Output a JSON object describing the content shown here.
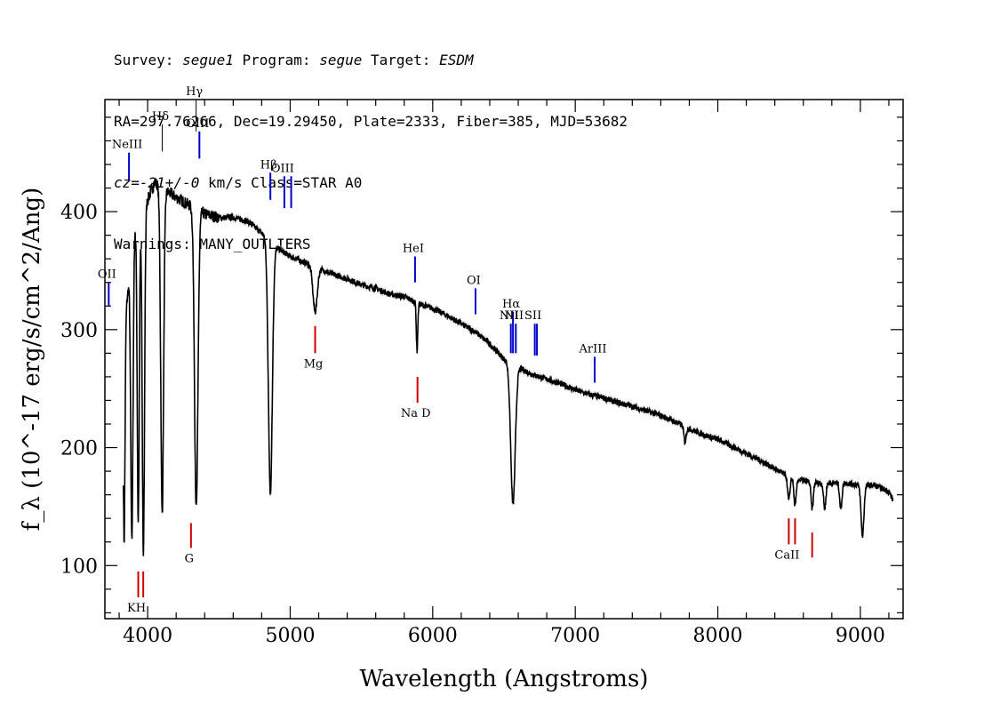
{
  "header": {
    "line1": {
      "survey_label": "Survey: ",
      "survey": "segue1",
      "program_label": " Program: ",
      "program": "segue",
      "target_label": " Target: ",
      "target": "ESDM"
    },
    "line2": "RA=297.76266, Dec=19.29450, Plate=2333, Fiber=385, MJD=53682",
    "line3": {
      "cz_value": "cz=-21+/-0",
      "rest": " km/s Class=STAR A0"
    },
    "line4": "Warnings: MANY_OUTLIERS"
  },
  "chart_data": {
    "type": "line",
    "xlabel": "Wavelength (Angstroms)",
    "ylabel": "f_λ (10^-17 erg/s/cm^2/Ang)",
    "xlim": [
      3700,
      9300
    ],
    "ylim": [
      55,
      495
    ],
    "xticks": [
      "4000",
      "5000",
      "6000",
      "7000",
      "8000",
      "9000"
    ],
    "yticks": [
      "100",
      "200",
      "300",
      "400"
    ],
    "colors": {
      "spectrum": "#000000",
      "error": "#b0b0b0",
      "emission": "#0000cc",
      "absorption": "#cc0000"
    },
    "continuum": [
      [
        3830,
        300
      ],
      [
        3860,
        330
      ],
      [
        3900,
        380
      ],
      [
        3950,
        400
      ],
      [
        4000,
        410
      ],
      [
        4050,
        425
      ],
      [
        4100,
        420
      ],
      [
        4200,
        412
      ],
      [
        4300,
        405
      ],
      [
        4400,
        398
      ],
      [
        4500,
        395
      ],
      [
        4600,
        395
      ],
      [
        4700,
        392
      ],
      [
        4800,
        382
      ],
      [
        4900,
        370
      ],
      [
        5000,
        362
      ],
      [
        5100,
        357
      ],
      [
        5200,
        352
      ],
      [
        5300,
        347
      ],
      [
        5400,
        343
      ],
      [
        5500,
        338
      ],
      [
        5600,
        335
      ],
      [
        5700,
        330
      ],
      [
        5800,
        328
      ],
      [
        5900,
        322
      ],
      [
        6000,
        318
      ],
      [
        6100,
        312
      ],
      [
        6200,
        305
      ],
      [
        6300,
        298
      ],
      [
        6400,
        288
      ],
      [
        6500,
        275
      ],
      [
        6600,
        268
      ],
      [
        6700,
        262
      ],
      [
        6800,
        258
      ],
      [
        6900,
        254
      ],
      [
        7000,
        249
      ],
      [
        7100,
        245
      ],
      [
        7200,
        242
      ],
      [
        7300,
        238
      ],
      [
        7400,
        235
      ],
      [
        7500,
        231
      ],
      [
        7600,
        227
      ],
      [
        7700,
        222
      ],
      [
        7800,
        216
      ],
      [
        7900,
        211
      ],
      [
        8000,
        207
      ],
      [
        8100,
        201
      ],
      [
        8200,
        195
      ],
      [
        8300,
        189
      ],
      [
        8400,
        182
      ],
      [
        8500,
        175
      ],
      [
        8600,
        172
      ],
      [
        8700,
        170
      ],
      [
        8800,
        170
      ],
      [
        8900,
        170
      ],
      [
        9000,
        168
      ],
      [
        9100,
        168
      ],
      [
        9200,
        163
      ],
      [
        9230,
        155
      ]
    ],
    "absorption_features": [
      [
        3835,
        120,
        6
      ],
      [
        3889,
        122,
        8
      ],
      [
        3934,
        135,
        7
      ],
      [
        3970,
        108,
        8
      ],
      [
        4102,
        145,
        10
      ],
      [
        4341,
        148,
        12
      ],
      [
        4861,
        162,
        14
      ],
      [
        5175,
        315,
        15
      ],
      [
        5890,
        282,
        5
      ],
      [
        6563,
        152,
        16
      ],
      [
        7770,
        205,
        8
      ],
      [
        8498,
        155,
        8
      ],
      [
        8542,
        150,
        8
      ],
      [
        8662,
        148,
        8
      ],
      [
        8750,
        148,
        8
      ],
      [
        8863,
        148,
        8
      ],
      [
        9015,
        125,
        10
      ]
    ],
    "lines": [
      {
        "label": "NeIII",
        "wave": 3869,
        "y1": 427,
        "y2": 450,
        "color": "emission",
        "label_pos": "above"
      },
      {
        "label": "Hδ",
        "wave": 4102,
        "y1": 451,
        "y2": 474,
        "color": "black",
        "label_pos": "above"
      },
      {
        "label": "Hγ",
        "wave": 4340,
        "y1": 468,
        "y2": 500,
        "color": "black",
        "label_pos": "above"
      },
      {
        "label": "OIII",
        "wave": 4363,
        "y1": 445,
        "y2": 468,
        "color": "emission",
        "label_pos": "above"
      },
      {
        "label": "Hβ",
        "wave": 4861,
        "y1": 410,
        "y2": 433,
        "color": "emission",
        "label_pos": "above"
      },
      {
        "label": "OIII",
        "wave": 4959,
        "y1": 403,
        "y2": 430,
        "color": "emission",
        "label_pos": "above"
      },
      {
        "label": "",
        "wave": 5007,
        "y1": 403,
        "y2": 430,
        "color": "emission",
        "label_pos": "none"
      },
      {
        "label": "HeI",
        "wave": 5876,
        "y1": 340,
        "y2": 362,
        "color": "emission",
        "label_pos": "above"
      },
      {
        "label": "OI",
        "wave": 6300,
        "y1": 313,
        "y2": 335,
        "color": "emission",
        "label_pos": "above"
      },
      {
        "label": "NII",
        "wave": 6548,
        "y1": 280,
        "y2": 305,
        "color": "emission",
        "label_pos": "above"
      },
      {
        "label": "Hα",
        "wave": 6563,
        "y1": 280,
        "y2": 315,
        "color": "emission",
        "label_pos": "above"
      },
      {
        "label": "NII",
        "wave": 6583,
        "y1": 280,
        "y2": 305,
        "color": "emission",
        "label_pos": "above"
      },
      {
        "label": "SII",
        "wave": 6716,
        "y1": 278,
        "y2": 305,
        "color": "emission",
        "label_pos": "above"
      },
      {
        "label": "",
        "wave": 6731,
        "y1": 278,
        "y2": 305,
        "color": "emission",
        "label_pos": "none"
      },
      {
        "label": "ArIII",
        "wave": 7136,
        "y1": 255,
        "y2": 277,
        "color": "emission",
        "label_pos": "above"
      },
      {
        "label": "OII",
        "wave": 3727,
        "y1": 320,
        "y2": 340,
        "color": "emission",
        "label_pos": "above"
      },
      {
        "label": "Mg",
        "wave": 5175,
        "y1": 280,
        "y2": 303,
        "color": "absorption",
        "label_pos": "below"
      },
      {
        "label": "Na D",
        "wave": 5893,
        "y1": 238,
        "y2": 260,
        "color": "absorption",
        "label_pos": "below"
      },
      {
        "label": "G",
        "wave": 4304,
        "y1": 115,
        "y2": 136,
        "color": "absorption",
        "label_pos": "below"
      },
      {
        "label": "KH",
        "wave": 3934,
        "y1": 73,
        "y2": 95,
        "color": "absorption",
        "label_pos": "below"
      },
      {
        "label": "",
        "wave": 3969,
        "y1": 73,
        "y2": 95,
        "color": "absorption",
        "label_pos": "none"
      },
      {
        "label": "CaII",
        "wave": 8498,
        "y1": 118,
        "y2": 140,
        "color": "absorption",
        "label_pos": "below"
      },
      {
        "label": "",
        "wave": 8542,
        "y1": 118,
        "y2": 140,
        "color": "absorption",
        "label_pos": "none"
      },
      {
        "label": "",
        "wave": 8662,
        "y1": 107,
        "y2": 128,
        "color": "absorption",
        "label_pos": "none"
      }
    ]
  }
}
